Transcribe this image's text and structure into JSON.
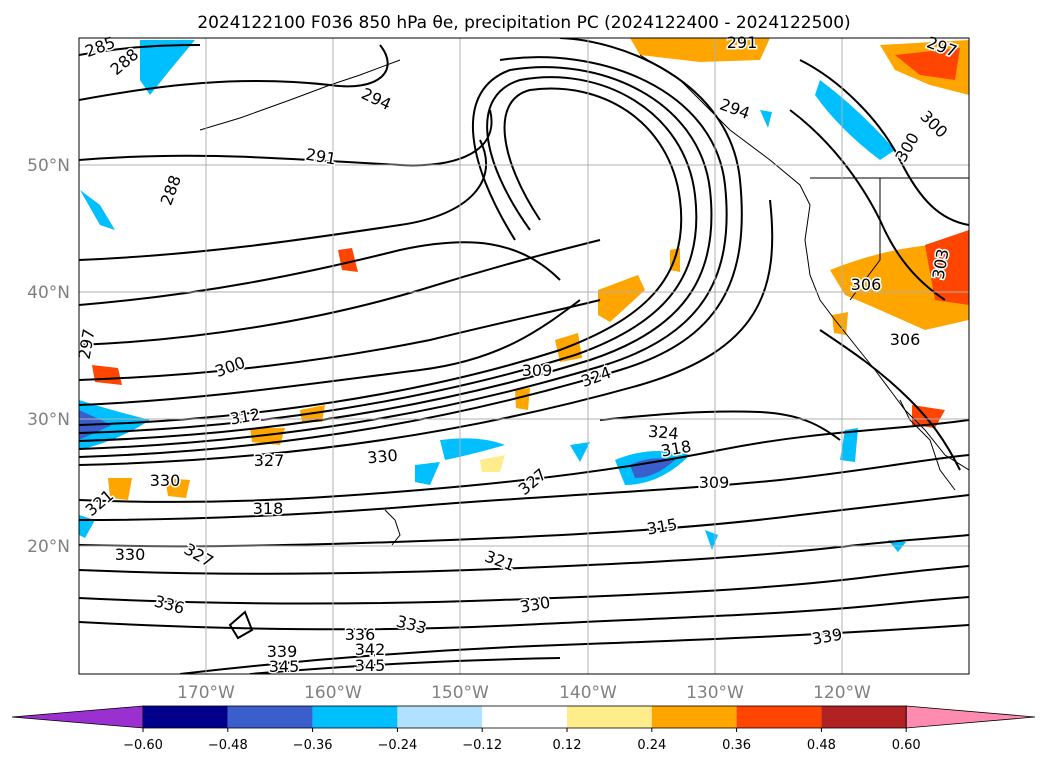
{
  "title": "2024122100 F036 850 hPa θe, precipitation PC (2024122400 - 2024122500)",
  "chart_data": {
    "type": "contour",
    "variable": "850 hPa equivalent potential temperature (K) with precipitation PC shading",
    "lon_range": [
      -180,
      -110
    ],
    "lat_range": [
      10,
      60
    ],
    "grid": true,
    "lat_ticks": [
      "50°N",
      "40°N",
      "30°N",
      "20°N"
    ],
    "lon_ticks": [
      "170°W",
      "160°W",
      "150°W",
      "140°W",
      "130°W",
      "120°W"
    ],
    "colorbar": {
      "ticks": [
        "−0.60",
        "−0.48",
        "−0.36",
        "−0.24",
        "−0.12",
        "0.12",
        "0.24",
        "0.36",
        "0.48",
        "0.60"
      ],
      "colors": [
        "#9b30d0",
        "#00008b",
        "#3a5fcd",
        "#00bfff",
        "#b0e2ff",
        "#ffffff",
        "#ffec8b",
        "#ffa500",
        "#ff4500",
        "#b22222",
        "#ff8cb0"
      ],
      "extend": "both"
    },
    "contour_labels": [
      "285",
      "288",
      "294",
      "291",
      "288",
      "291",
      "294",
      "297",
      "300",
      "300",
      "297",
      "306",
      "303",
      "306",
      "309",
      "300",
      "312",
      "327",
      "330",
      "324",
      "324",
      "318",
      "309",
      "330",
      "321",
      "327",
      "318",
      "327",
      "330",
      "321",
      "315",
      "336",
      "333",
      "330",
      "339",
      "336",
      "339",
      "342",
      "345",
      "345"
    ]
  }
}
